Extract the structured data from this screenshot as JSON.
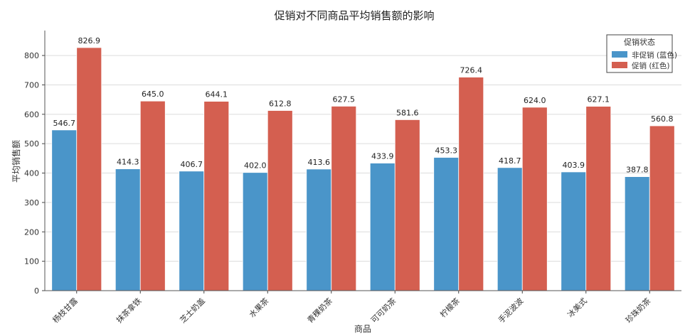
{
  "chart_data": {
    "type": "bar",
    "title": "促销对不同商品平均销售额的影响",
    "xlabel": "商品",
    "ylabel": "平均销售额",
    "ylim": [
      0,
      880
    ],
    "yticks": [
      0,
      100,
      200,
      300,
      400,
      500,
      600,
      700,
      800
    ],
    "grid": true,
    "categories": [
      "杨枝甘露",
      "抹茶拿铁",
      "芝士奶盖",
      "水果茶",
      "青稞奶茶",
      "可可奶茶",
      "柠檬茶",
      "手泥波波",
      "冰美式",
      "珍珠奶茶"
    ],
    "series": [
      {
        "name": "非促销 (蓝色)",
        "color": "#4a95c9",
        "values": [
          546.7,
          414.3,
          406.7,
          402.0,
          413.6,
          433.9,
          453.3,
          418.7,
          403.9,
          387.8
        ]
      },
      {
        "name": "促销 (红色)",
        "color": "#d45f50",
        "values": [
          826.9,
          645.0,
          644.1,
          612.8,
          627.5,
          581.6,
          726.4,
          624.0,
          627.1,
          560.8
        ]
      }
    ],
    "legend": {
      "title": "促销状态",
      "placement": "top-right"
    }
  }
}
